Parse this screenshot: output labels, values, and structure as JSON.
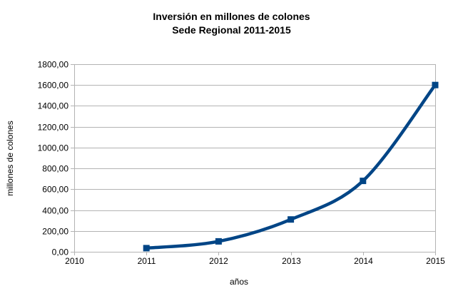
{
  "chart_data": {
    "type": "line",
    "title": "Inversión en millones de colones",
    "subtitle": "Sede Regional 2011-2015",
    "xlabel": "años",
    "ylabel": "millones de colones",
    "x_tick_labels": [
      "2010",
      "2011",
      "2012",
      "2013",
      "2014",
      "2015"
    ],
    "x": [
      2011,
      2012,
      2013,
      2014,
      2015
    ],
    "values": [
      35,
      100,
      310,
      680,
      1600
    ],
    "xlim": [
      2010,
      2015
    ],
    "ylim": [
      0,
      1800
    ],
    "y_tick_step": 200,
    "y_tick_labels": [
      "0,00",
      "200,00",
      "400,00",
      "600,00",
      "800,00",
      "1000,00",
      "1200,00",
      "1400,00",
      "1600,00",
      "1800,00"
    ],
    "grid": "horizontal-only",
    "legend": "none",
    "line_style": "smooth",
    "marker": "square",
    "colors": {
      "series": "#004586",
      "grid": "#b3b3b3",
      "axis": "#b3b3b3",
      "text": "#000000",
      "background": "#ffffff"
    }
  }
}
